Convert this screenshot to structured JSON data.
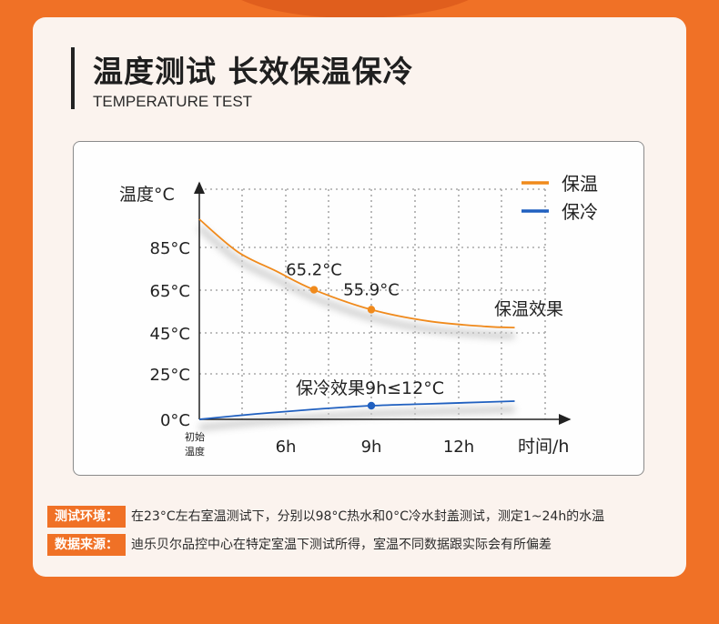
{
  "header": {
    "title": "温度测试 长效保温保冷",
    "subtitle": "TEMPERATURE TEST"
  },
  "colors": {
    "accent": "#f07126",
    "warm_line": "#f08a1c",
    "cold_line": "#2060c0"
  },
  "chart_data": {
    "type": "line",
    "ylabel": "温度°C",
    "xlabel": "时间/h",
    "y_ticks": [
      "85°C",
      "65°C",
      "45°C",
      "25°C",
      "0°C"
    ],
    "x_ticks": [
      "6h",
      "9h",
      "12h"
    ],
    "x_start_label_line1": "初始",
    "x_start_label_line2": "温度",
    "series": [
      {
        "name": "保温",
        "color": "#f08a1c",
        "points": [
          [
            0,
            98
          ],
          [
            2,
            83
          ],
          [
            4,
            74
          ],
          [
            6,
            65.2
          ],
          [
            9,
            55.9
          ],
          [
            12,
            50.5
          ],
          [
            15,
            48
          ],
          [
            16.5,
            47.5
          ]
        ],
        "markers": [
          [
            6,
            65.2
          ],
          [
            9,
            55.9
          ]
        ],
        "marker_labels": [
          "65.2°C",
          "55.9°C"
        ],
        "end_label": "保温效果"
      },
      {
        "name": "保冷",
        "color": "#2060c0",
        "points": [
          [
            0,
            0
          ],
          [
            3,
            3
          ],
          [
            6,
            5.5
          ],
          [
            9,
            7.5
          ],
          [
            12,
            8.5
          ],
          [
            15,
            9.5
          ],
          [
            16.5,
            10
          ]
        ],
        "markers": [
          [
            9,
            7.5
          ]
        ],
        "annotation": "保冷效果9h≤12°C"
      }
    ],
    "legend": {
      "position": "top-right"
    },
    "grid": true
  },
  "notes": [
    {
      "tag": "测试环境：",
      "text": "在23°C左右室温测试下，分别以98°C热水和0°C冷水封盖测试，测定1~24h的水温"
    },
    {
      "tag": "数据来源：",
      "text": "迪乐贝尔品控中心在特定室温下测试所得，室温不同数据跟实际会有所偏差"
    }
  ]
}
